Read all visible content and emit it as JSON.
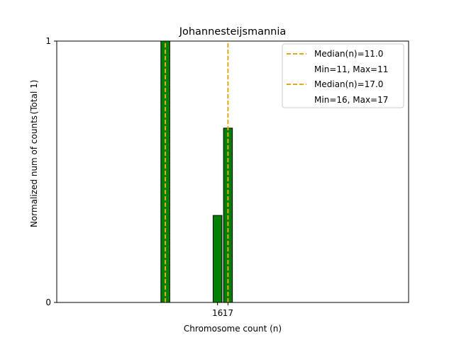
{
  "chart_data": {
    "type": "bar",
    "title": "Johannesteijsmannia",
    "xlabel": "Chromosome count (n)",
    "ylabel": "Normalized num of counts",
    "ylabel_extra": "(Total 1)",
    "xlim": [
      0.6,
      34.3
    ],
    "ylim": [
      0,
      1
    ],
    "yticks": [
      "0",
      "1"
    ],
    "xticks": [
      "16",
      "17"
    ],
    "bar_width": 0.85,
    "bars": [
      {
        "x": 11,
        "value": 1.0
      },
      {
        "x": 16,
        "value": 0.333
      },
      {
        "x": 17,
        "value": 0.667
      }
    ],
    "medians": [
      {
        "x": 11,
        "label": "Median(n)=11.0",
        "range": "Min=11, Max=11"
      },
      {
        "x": 17,
        "label": "Median(n)=17.0",
        "range": "Min=16, Max=17"
      }
    ],
    "colors": {
      "bar": "#008000",
      "bar_edge": "#000000",
      "median": "#e6a817"
    },
    "legend_position": "top-right"
  }
}
